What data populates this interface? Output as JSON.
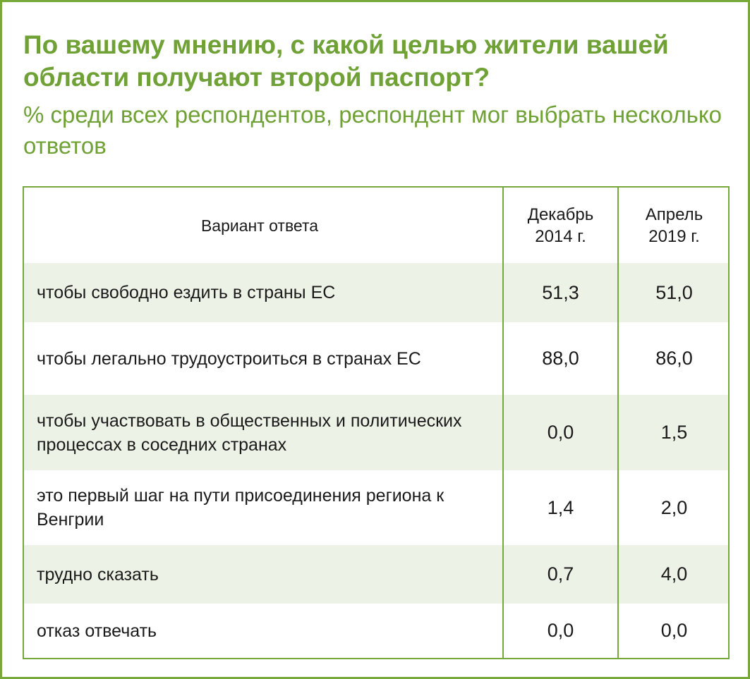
{
  "chart_data": {
    "type": "table",
    "title": "По вашему мнению, с какой целью жители вашей области получают второй паспорт?",
    "subtitle": "% среди всех респондентов, респондент мог выбрать несколько ответов",
    "columns": {
      "answer": "Вариант ответа",
      "dec2014_line1": "Декабрь",
      "dec2014_line2": "2014 г.",
      "apr2019_line1": "Апрель",
      "apr2019_line2": "2019 г."
    },
    "rows": [
      {
        "label": "чтобы свободно ездить в страны ЕС",
        "dec2014": "51,3",
        "apr2019": "51,0"
      },
      {
        "label": "чтобы легально трудоустроиться в странах ЕС",
        "dec2014": "88,0",
        "apr2019": "86,0"
      },
      {
        "label": "чтобы участвовать в общественных и политических процессах в соседних странах",
        "dec2014": "0,0",
        "apr2019": "1,5"
      },
      {
        "label": "это первый шаг на пути присоединения региона к Венгрии",
        "dec2014": "1,4",
        "apr2019": "2,0"
      },
      {
        "label": "трудно сказать",
        "dec2014": "0,7",
        "apr2019": "4,0"
      },
      {
        "label": "отказ отвечать",
        "dec2014": "0,0",
        "apr2019": "0,0"
      }
    ]
  },
  "colors": {
    "accent": "#6fa136",
    "border": "#76a83a",
    "row_shade": "#edf2e6"
  }
}
